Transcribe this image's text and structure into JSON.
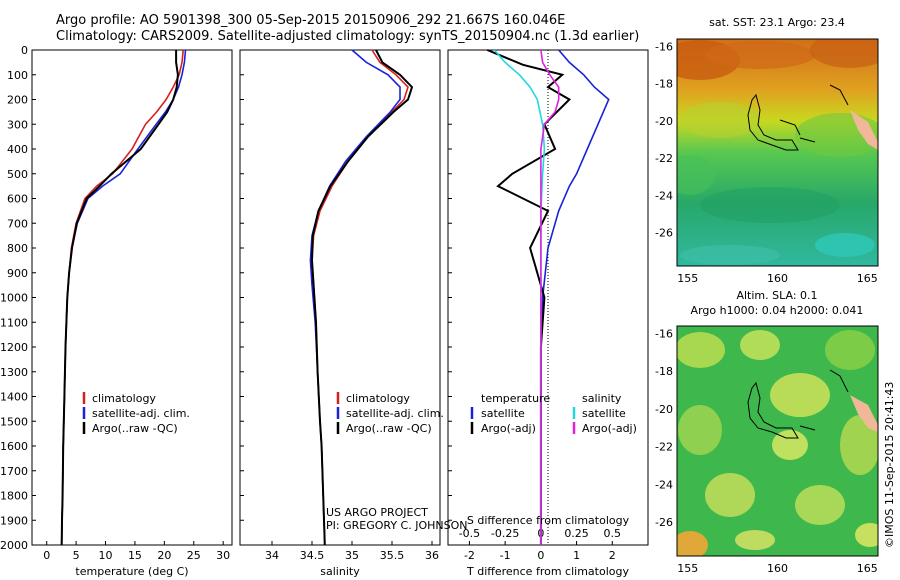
{
  "header": {
    "line1": "Argo profile: AO 5901398_300 05-Sep-2015 20150906_292 21.667S 160.046E",
    "line2": "Climatology: CARS2009. Satellite-adjusted climatology: synTS_20150904.nc (1.3d earlier)"
  },
  "colors": {
    "climatology": "#d62020",
    "satellite": "#1a22d8",
    "argo": "#000000",
    "salinity_satellite": "#22d8e0",
    "salinity_argo": "#e020e0"
  },
  "chart_data": [
    {
      "type": "line",
      "xlabel": "temperature (deg C)",
      "ylabel": "",
      "xlim": [
        -2.5,
        31.5
      ],
      "ylim": [
        2000,
        0
      ],
      "xticks": [
        0,
        5,
        10,
        15,
        20,
        25,
        30
      ],
      "yticks": [
        0,
        100,
        200,
        300,
        400,
        500,
        600,
        700,
        800,
        900,
        1000,
        1100,
        1200,
        1300,
        1400,
        1500,
        1600,
        1700,
        1800,
        1900,
        2000
      ],
      "legend": [
        "climatology",
        "satellite-adj. clim.",
        "Argo(..raw -QC)"
      ],
      "series": [
        {
          "name": "climatology",
          "color": "red",
          "x": [
            23.2,
            23.0,
            22.5,
            21.5,
            20.3,
            18.7,
            16.8,
            14.5,
            11.2,
            8.5,
            6.5,
            5.0,
            4.2,
            3.8,
            3.5,
            3.2,
            3.0,
            2.9,
            2.8,
            2.75,
            2.7,
            2.6,
            2.55
          ],
          "y": [
            0,
            50,
            100,
            150,
            200,
            250,
            300,
            400,
            500,
            550,
            600,
            700,
            800,
            900,
            1000,
            1200,
            1400,
            1500,
            1600,
            1700,
            1800,
            1900,
            2000
          ]
        },
        {
          "name": "satellite-adj. clim.",
          "color": "blue",
          "x": [
            23.6,
            23.4,
            23.0,
            22.4,
            21.5,
            20.2,
            18.6,
            15.5,
            12.5,
            9.5,
            7.0,
            5.2,
            4.3,
            3.8,
            3.5,
            3.2,
            3.0,
            2.9,
            2.8,
            2.75,
            2.7,
            2.6,
            2.55
          ],
          "y": [
            0,
            50,
            100,
            150,
            200,
            250,
            300,
            400,
            500,
            550,
            600,
            700,
            800,
            900,
            1000,
            1200,
            1400,
            1500,
            1600,
            1700,
            1800,
            1900,
            2000
          ]
        },
        {
          "name": "Argo(..raw -QC)",
          "color": "black",
          "x": [
            22.0,
            22.0,
            22.3,
            22.1,
            21.5,
            20.5,
            19.0,
            16.0,
            11.0,
            9.0,
            6.8,
            5.1,
            4.3,
            3.8,
            3.5,
            3.2,
            3.0,
            2.9,
            2.8,
            2.75,
            2.7,
            2.6,
            2.55
          ],
          "y": [
            0,
            50,
            100,
            150,
            200,
            250,
            300,
            400,
            500,
            550,
            600,
            700,
            800,
            900,
            1000,
            1200,
            1400,
            1500,
            1600,
            1700,
            1800,
            1900,
            2000
          ]
        }
      ]
    },
    {
      "type": "line",
      "xlabel": "salinity",
      "ylabel": "",
      "xlim": [
        33.6,
        36.1
      ],
      "ylim": [
        2000,
        0
      ],
      "xticks": [
        34,
        34.5,
        35,
        35.5,
        36
      ],
      "legend": [
        "climatology",
        "satellite-adj. clim.",
        "Argo(..raw -QC)"
      ],
      "annotation": [
        "US ARGO PROJECT",
        "PI: GREGORY C. JOHNSON"
      ],
      "series": [
        {
          "name": "climatology",
          "color": "red",
          "x": [
            35.25,
            35.35,
            35.55,
            35.7,
            35.65,
            35.5,
            35.2,
            34.95,
            34.75,
            34.6,
            34.52,
            34.5,
            34.52,
            34.55,
            34.57,
            34.6,
            34.62,
            34.63,
            34.64,
            34.65,
            34.66
          ],
          "y": [
            0,
            50,
            100,
            150,
            200,
            250,
            350,
            450,
            550,
            650,
            750,
            850,
            950,
            1100,
            1300,
            1500,
            1600,
            1700,
            1800,
            1900,
            2000
          ]
        },
        {
          "name": "satellite-adj. clim.",
          "color": "blue",
          "x": [
            35.0,
            35.18,
            35.45,
            35.6,
            35.6,
            35.48,
            35.18,
            34.92,
            34.72,
            34.58,
            34.5,
            34.48,
            34.5,
            34.54,
            34.57,
            34.6,
            34.62,
            34.63,
            34.64,
            34.65,
            34.66
          ],
          "y": [
            0,
            50,
            100,
            150,
            200,
            250,
            350,
            450,
            550,
            650,
            750,
            850,
            950,
            1100,
            1300,
            1500,
            1600,
            1700,
            1800,
            1900,
            2000
          ]
        },
        {
          "name": "Argo(..raw -QC)",
          "color": "black",
          "x": [
            35.3,
            35.38,
            35.6,
            35.75,
            35.7,
            35.52,
            35.2,
            34.95,
            34.73,
            34.58,
            34.51,
            34.5,
            34.52,
            34.55,
            34.57,
            34.6,
            34.62,
            34.63,
            34.64,
            34.65,
            34.66
          ],
          "y": [
            0,
            50,
            100,
            150,
            200,
            250,
            350,
            450,
            550,
            650,
            750,
            850,
            950,
            1100,
            1300,
            1500,
            1600,
            1700,
            1800,
            1900,
            2000
          ]
        }
      ]
    },
    {
      "type": "line",
      "xlabel": "T difference from climatology",
      "xlabel_top": "S difference from climatology",
      "xlim": [
        -2.6,
        3.0
      ],
      "ylim": [
        2000,
        0
      ],
      "xticks_T": [
        -2,
        -1,
        0,
        1,
        2
      ],
      "xticks_S": [
        -0.5,
        -0.25,
        0,
        0.25,
        0.5
      ],
      "legend_T_title": "temperature",
      "legend_S_title": "salinity",
      "legend": [
        "satellite",
        "Argo(-adj)",
        "satellite",
        "Argo(-adj)"
      ],
      "series": [
        {
          "name": "satellite",
          "group": "temperature",
          "color": "blue",
          "x": [
            0.5,
            0.8,
            1.2,
            1.5,
            1.9,
            1.6,
            1.3,
            1.0,
            0.8,
            0.5,
            0.2,
            0.05,
            0.0,
            0.0,
            0.0
          ],
          "y": [
            0,
            50,
            100,
            150,
            200,
            300,
            400,
            500,
            550,
            650,
            800,
            1000,
            1200,
            1500,
            2000
          ]
        },
        {
          "name": "Argo(-adj)",
          "group": "temperature",
          "color": "black",
          "x": [
            -1.5,
            -0.5,
            0.6,
            0.2,
            0.8,
            0.1,
            0.4,
            -0.8,
            -1.2,
            0.2,
            -0.3,
            0.1,
            0.0,
            0.0,
            0.0
          ],
          "y": [
            0,
            60,
            100,
            150,
            200,
            300,
            400,
            500,
            550,
            650,
            800,
            1000,
            1200,
            1500,
            2000
          ]
        },
        {
          "name": "satellite",
          "group": "salinity",
          "color": "cyan",
          "x": [
            -1.3,
            -1.0,
            -0.6,
            -0.3,
            -0.1,
            0.05,
            0.1,
            0.05,
            0.0,
            0.0,
            0.0,
            0.0,
            0.0
          ],
          "y": [
            0,
            50,
            100,
            150,
            200,
            300,
            400,
            500,
            650,
            800,
            1000,
            1500,
            2000
          ]
        },
        {
          "name": "Argo(-adj)",
          "group": "salinity",
          "color": "magenta",
          "x": [
            0.0,
            0.05,
            0.25,
            0.5,
            0.5,
            0.4,
            0.1,
            0.0,
            0.0,
            0.0,
            0.0,
            0.0,
            0.0
          ],
          "y": [
            0,
            50,
            100,
            150,
            200,
            250,
            300,
            400,
            600,
            800,
            1000,
            1500,
            2000
          ]
        }
      ]
    },
    {
      "type": "heatmap",
      "title": "sat. SST: 23.1  Argo: 23.4",
      "xticks": [
        155,
        160,
        165
      ],
      "yticks": [
        -16,
        -18,
        -20,
        -22,
        -24,
        -26
      ],
      "xlim": [
        154.4,
        165.6
      ],
      "ylim": [
        -27.8,
        -15.6
      ],
      "marker": {
        "lon": 160.046,
        "lat": -21.667
      }
    },
    {
      "type": "heatmap",
      "title": "Altim. SLA: 0.1",
      "subtitle": "Argo h1000: 0.04 h2000: 0.041",
      "xticks": [
        155,
        160,
        165
      ],
      "yticks": [
        -16,
        -18,
        -20,
        -22,
        -24,
        -26
      ],
      "xlim": [
        154.4,
        165.6
      ],
      "ylim": [
        -27.8,
        -15.6
      ],
      "marker": {
        "lon": 160.046,
        "lat": -21.667
      }
    }
  ],
  "credit": "©IMOS 11-Sep-2015 20:41:43"
}
